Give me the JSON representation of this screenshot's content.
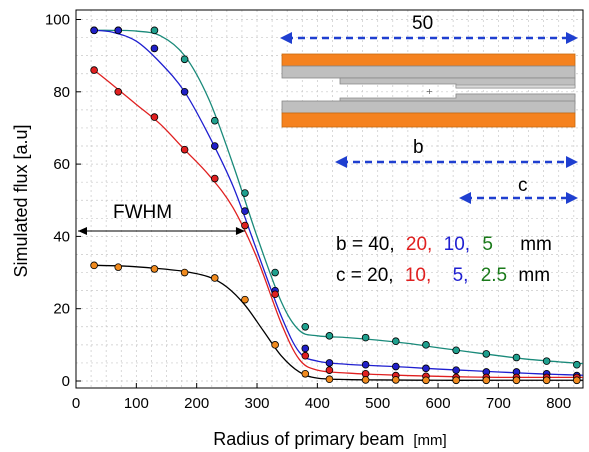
{
  "chart_data": {
    "type": "scatter",
    "xlabel": "Radius of primary beam",
    "xlabel_unit": "[mm]",
    "ylabel": "Simulated flux [a.u]",
    "xlim": [
      0,
      840
    ],
    "ylim": [
      -2,
      102
    ],
    "x_ticks": [
      "0",
      "100",
      "200",
      "300",
      "400",
      "500",
      "600",
      "700",
      "800"
    ],
    "y_ticks": [
      "0",
      "20",
      "40",
      "60",
      "80",
      "100"
    ],
    "grid": true,
    "series": [
      {
        "color": "#1a8a7a",
        "marker": "#1fa08e",
        "x": [
          30,
          70,
          130,
          180,
          230,
          280,
          330,
          380,
          420,
          480,
          530,
          580,
          630,
          680,
          730,
          780,
          830
        ],
        "y": [
          97,
          97,
          97,
          89,
          72,
          52,
          30,
          15,
          12.5,
          12,
          11,
          10,
          8.5,
          7.5,
          6.5,
          5.5,
          4.5
        ],
        "fit": [
          [
            30,
            97
          ],
          [
            60,
            97
          ],
          [
            100,
            96.8
          ],
          [
            140,
            95.5
          ],
          [
            180,
            90
          ],
          [
            220,
            78
          ],
          [
            260,
            60
          ],
          [
            300,
            40
          ],
          [
            340,
            22
          ],
          [
            370,
            14
          ],
          [
            400,
            12.5
          ],
          [
            450,
            12
          ],
          [
            500,
            11.3
          ],
          [
            550,
            10.4
          ],
          [
            600,
            9.2
          ],
          [
            650,
            8.1
          ],
          [
            700,
            7
          ],
          [
            750,
            6
          ],
          [
            800,
            5.3
          ],
          [
            840,
            4.8
          ]
        ]
      },
      {
        "color": "#1f1fd0",
        "marker": "#2020c8",
        "x": [
          30,
          70,
          130,
          180,
          230,
          280,
          330,
          380,
          420,
          480,
          530,
          580,
          630,
          680,
          730,
          780,
          830
        ],
        "y": [
          97,
          97,
          92,
          80,
          65,
          47,
          25,
          9,
          5,
          4.5,
          4,
          3.5,
          3,
          2.5,
          2.5,
          2,
          1.5
        ],
        "fit": [
          [
            30,
            97
          ],
          [
            60,
            96.5
          ],
          [
            100,
            94
          ],
          [
            140,
            88
          ],
          [
            180,
            80
          ],
          [
            220,
            68
          ],
          [
            260,
            54
          ],
          [
            300,
            36
          ],
          [
            340,
            18
          ],
          [
            370,
            8
          ],
          [
            400,
            5.5
          ],
          [
            450,
            4.6
          ],
          [
            500,
            4.2
          ],
          [
            550,
            3.8
          ],
          [
            600,
            3.3
          ],
          [
            650,
            2.9
          ],
          [
            700,
            2.5
          ],
          [
            750,
            2.1
          ],
          [
            800,
            1.8
          ],
          [
            840,
            1.6
          ]
        ]
      },
      {
        "color": "#e02020",
        "marker": "#e02020",
        "x": [
          30,
          70,
          130,
          180,
          230,
          280,
          330,
          380,
          420,
          480,
          530,
          580,
          630,
          680,
          730,
          780,
          830
        ],
        "y": [
          86,
          80,
          73,
          64,
          56,
          43,
          24,
          7,
          3,
          2,
          1.5,
          1.3,
          1,
          1,
          1,
          1,
          1
        ],
        "fit": [
          [
            30,
            86
          ],
          [
            60,
            82
          ],
          [
            100,
            76.5
          ],
          [
            140,
            71
          ],
          [
            180,
            64
          ],
          [
            220,
            57
          ],
          [
            260,
            48
          ],
          [
            300,
            34
          ],
          [
            340,
            16
          ],
          [
            370,
            6
          ],
          [
            400,
            3
          ],
          [
            450,
            2.2
          ],
          [
            500,
            1.8
          ],
          [
            550,
            1.5
          ],
          [
            600,
            1.3
          ],
          [
            650,
            1.1
          ],
          [
            700,
            1
          ],
          [
            750,
            1
          ],
          [
            800,
            1
          ],
          [
            840,
            1
          ]
        ]
      },
      {
        "color": "#000000",
        "marker": "#f08a1e",
        "x": [
          30,
          70,
          130,
          180,
          230,
          280,
          330,
          380,
          420,
          480,
          530,
          580,
          630,
          680,
          730,
          780,
          830
        ],
        "y": [
          32,
          31.5,
          31,
          30,
          28.5,
          22.5,
          10,
          2,
          0.5,
          0.3,
          0.3,
          0.2,
          0.2,
          0.2,
          0.2,
          0.2,
          0.2
        ],
        "fit": [
          [
            30,
            32
          ],
          [
            80,
            31.8
          ],
          [
            130,
            31.2
          ],
          [
            180,
            30.3
          ],
          [
            220,
            28.8
          ],
          [
            250,
            26
          ],
          [
            280,
            21
          ],
          [
            310,
            14
          ],
          [
            340,
            7
          ],
          [
            370,
            2.5
          ],
          [
            400,
            0.8
          ],
          [
            450,
            0.4
          ],
          [
            500,
            0.3
          ],
          [
            600,
            0.2
          ],
          [
            700,
            0.2
          ],
          [
            840,
            0.2
          ]
        ]
      }
    ],
    "annotations": {
      "fwhm": {
        "text": "FWHM",
        "x_from": 0,
        "x_to": 280,
        "y": 41.5
      },
      "b_line": {
        "prefix": "b = 40,",
        "vals": [
          "20,",
          "10,",
          "5"
        ],
        "unit": "mm",
        "colors": [
          "#000000",
          "#e02020",
          "#1f1fd0",
          "#1a7a1a",
          "#000000"
        ]
      },
      "c_line": {
        "prefix": "c = 20,",
        "vals": [
          "10,",
          "5,",
          "2.5"
        ],
        "unit": "mm",
        "colors": [
          "#000000",
          "#e02020",
          "#1f1fd0",
          "#1a7a1a",
          "#000000"
        ]
      },
      "dim_50": "50",
      "dim_b": "b",
      "dim_c": "c"
    },
    "colors": {
      "orange": "#f5821f",
      "gray": "#bfbfbf",
      "arrow": "#1f3fd0"
    }
  }
}
